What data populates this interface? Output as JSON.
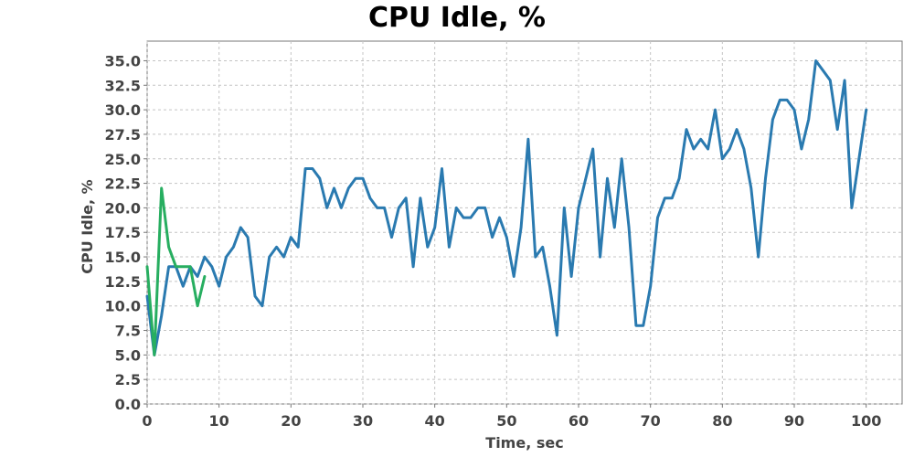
{
  "chart_data": {
    "type": "line",
    "title": "CPU Idle, %",
    "xlabel": "Time, sec",
    "ylabel": "CPU Idle, %",
    "xlim": [
      0,
      105
    ],
    "ylim": [
      0,
      37
    ],
    "xticks": [
      0,
      10,
      20,
      30,
      40,
      50,
      60,
      70,
      80,
      90,
      100
    ],
    "yticks": [
      "0.0",
      "2.5",
      "5.0",
      "7.5",
      "10.0",
      "12.5",
      "15.0",
      "17.5",
      "20.0",
      "22.5",
      "25.0",
      "27.5",
      "30.0",
      "32.5",
      "35.0"
    ],
    "grid": true,
    "series": [
      {
        "color": "#2a7ab0",
        "x": [
          0,
          1,
          2,
          3,
          4,
          5,
          6,
          7,
          8,
          9,
          10,
          11,
          12,
          13,
          14,
          15,
          16,
          17,
          18,
          19,
          20,
          21,
          22,
          23,
          24,
          25,
          26,
          27,
          28,
          29,
          30,
          31,
          32,
          33,
          34,
          35,
          36,
          37,
          38,
          39,
          40,
          41,
          42,
          43,
          44,
          45,
          46,
          47,
          48,
          49,
          50,
          51,
          52,
          53,
          54,
          55,
          56,
          57,
          58,
          59,
          60,
          61,
          62,
          63,
          64,
          65,
          66,
          67,
          68,
          69,
          70,
          71,
          72,
          73,
          74,
          75,
          76,
          77,
          78,
          79,
          80,
          81,
          82,
          83,
          84,
          85,
          86,
          87,
          88,
          89,
          90,
          91,
          92,
          93,
          94,
          95,
          96,
          97,
          98,
          99,
          100
        ],
        "y": [
          11,
          5,
          9,
          14,
          14,
          12,
          14,
          13,
          15,
          14,
          12,
          15,
          16,
          18,
          17,
          11,
          10,
          15,
          16,
          15,
          17,
          16,
          24,
          24,
          23,
          20,
          22,
          20,
          22,
          23,
          23,
          21,
          20,
          20,
          17,
          20,
          21,
          14,
          21,
          16,
          18,
          24,
          16,
          20,
          19,
          19,
          20,
          20,
          17,
          19,
          17,
          13,
          18,
          27,
          15,
          16,
          12,
          7,
          20,
          13,
          20,
          23,
          26,
          15,
          23,
          18,
          25,
          18,
          8,
          8,
          12,
          19,
          21,
          21,
          23,
          28,
          26,
          27,
          26,
          30,
          25,
          26,
          28,
          26,
          22,
          15,
          23,
          29,
          31,
          31,
          30,
          26,
          29,
          35,
          34,
          33,
          28,
          33,
          20,
          25,
          30
        ]
      },
      {
        "color": "#27ae60",
        "x": [
          0,
          1,
          2,
          3,
          4,
          5,
          6,
          7,
          8
        ],
        "y": [
          14,
          5,
          22,
          16,
          14,
          14,
          14,
          10,
          13
        ]
      }
    ]
  }
}
